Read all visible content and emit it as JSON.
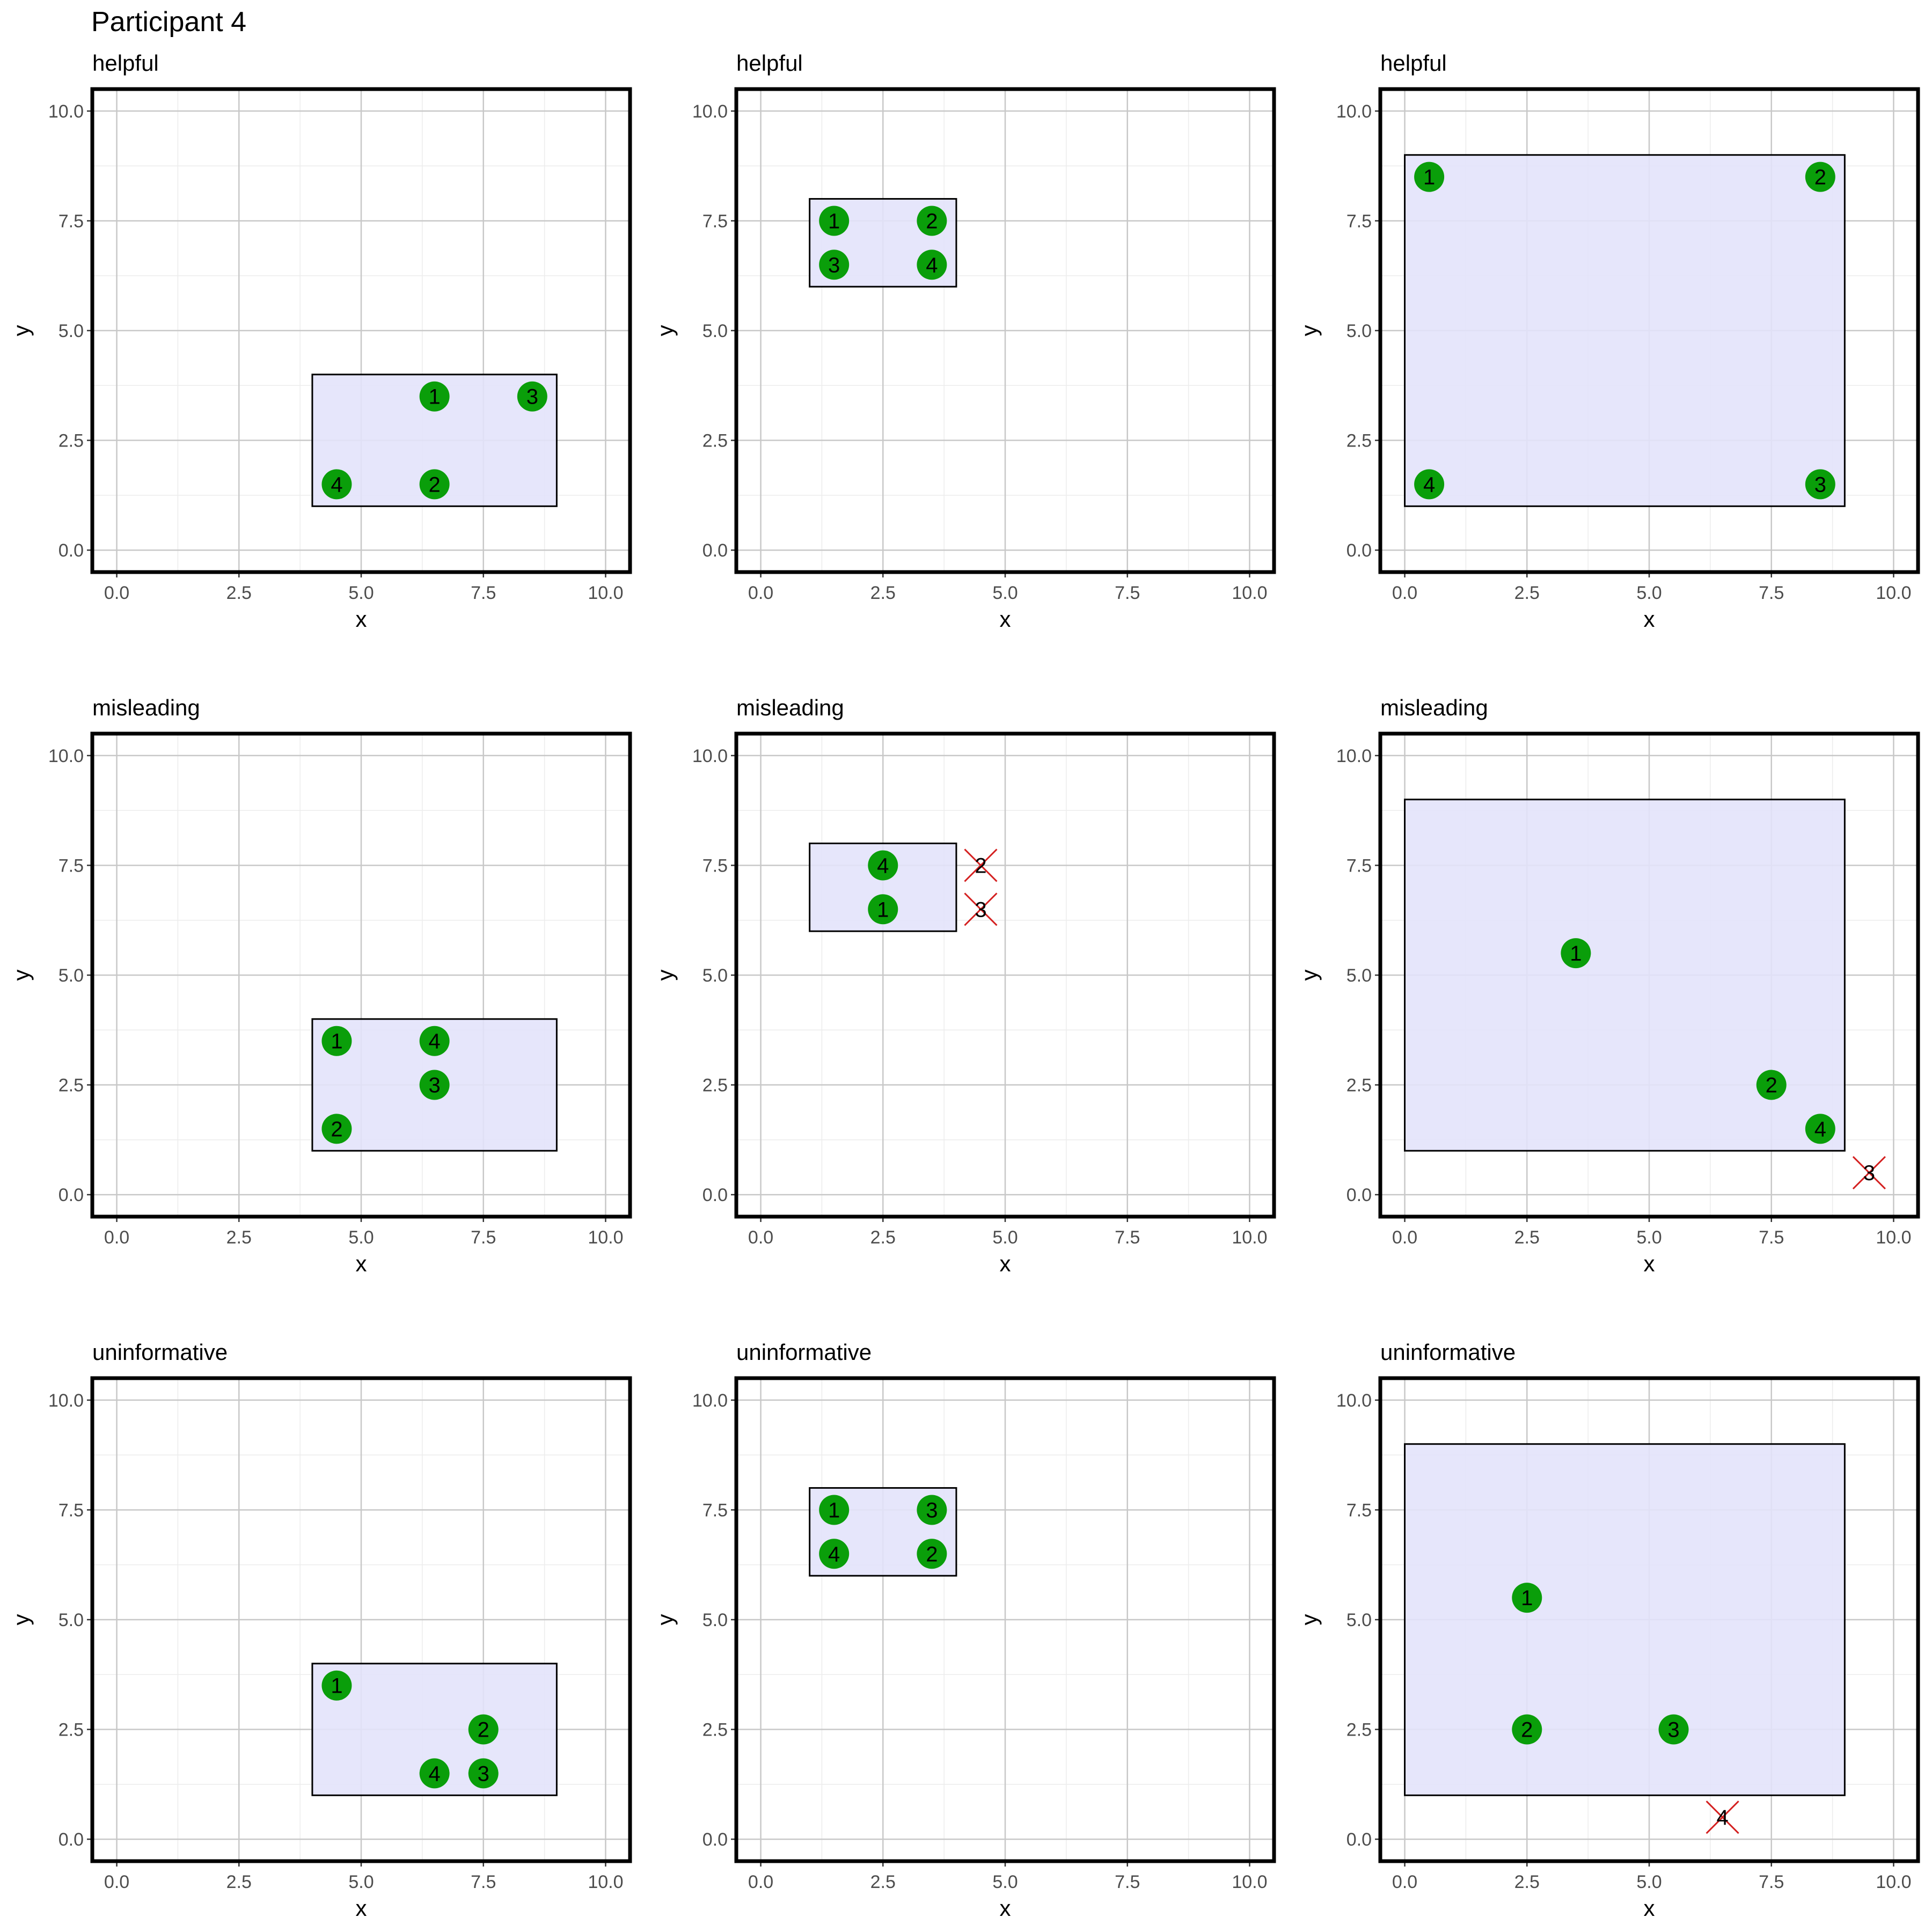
{
  "figure": {
    "title": "Participant 4"
  },
  "colors": {
    "point_fill": "#0a9e0a",
    "point_text": "#000000",
    "rect_fill": "#e3e3fb",
    "rect_stroke": "#000000",
    "cross": "#d42020",
    "grid_major": "#c8c8c8",
    "grid_minor": "#ececec",
    "frame": "#000000",
    "tick_label": "#4d4d4d"
  },
  "chart_data": [
    {
      "type": "scatter",
      "title": "helpful",
      "xlabel": "x",
      "ylabel": "y",
      "xlim": [
        -0.5,
        10.5
      ],
      "ylim": [
        -0.5,
        10.5
      ],
      "xticks": [
        "0.0",
        "2.5",
        "5.0",
        "7.5",
        "10.0"
      ],
      "yticks": [
        "0.0",
        "2.5",
        "5.0",
        "7.5",
        "10.0"
      ],
      "rect": {
        "x0": 4,
        "x1": 9,
        "y0": 1,
        "y1": 4
      },
      "points": [
        {
          "label": "1",
          "x": 6.5,
          "y": 3.5,
          "status": "inside"
        },
        {
          "label": "2",
          "x": 6.5,
          "y": 1.5,
          "status": "inside"
        },
        {
          "label": "3",
          "x": 8.5,
          "y": 3.5,
          "status": "inside"
        },
        {
          "label": "4",
          "x": 4.5,
          "y": 1.5,
          "status": "inside"
        }
      ]
    },
    {
      "type": "scatter",
      "title": "helpful",
      "xlabel": "x",
      "ylabel": "y",
      "xlim": [
        -0.5,
        10.5
      ],
      "ylim": [
        -0.5,
        10.5
      ],
      "xticks": [
        "0.0",
        "2.5",
        "5.0",
        "7.5",
        "10.0"
      ],
      "yticks": [
        "0.0",
        "2.5",
        "5.0",
        "7.5",
        "10.0"
      ],
      "rect": {
        "x0": 1,
        "x1": 4,
        "y0": 6,
        "y1": 8
      },
      "points": [
        {
          "label": "1",
          "x": 1.5,
          "y": 7.5,
          "status": "inside"
        },
        {
          "label": "2",
          "x": 3.5,
          "y": 7.5,
          "status": "inside"
        },
        {
          "label": "3",
          "x": 1.5,
          "y": 6.5,
          "status": "inside"
        },
        {
          "label": "4",
          "x": 3.5,
          "y": 6.5,
          "status": "inside"
        }
      ]
    },
    {
      "type": "scatter",
      "title": "helpful",
      "xlabel": "x",
      "ylabel": "y",
      "xlim": [
        -0.5,
        10.5
      ],
      "ylim": [
        -0.5,
        10.5
      ],
      "xticks": [
        "0.0",
        "2.5",
        "5.0",
        "7.5",
        "10.0"
      ],
      "yticks": [
        "0.0",
        "2.5",
        "5.0",
        "7.5",
        "10.0"
      ],
      "rect": {
        "x0": 0,
        "x1": 9,
        "y0": 1,
        "y1": 9
      },
      "points": [
        {
          "label": "1",
          "x": 0.5,
          "y": 8.5,
          "status": "inside"
        },
        {
          "label": "2",
          "x": 8.5,
          "y": 8.5,
          "status": "inside"
        },
        {
          "label": "3",
          "x": 8.5,
          "y": 1.5,
          "status": "inside"
        },
        {
          "label": "4",
          "x": 0.5,
          "y": 1.5,
          "status": "inside"
        }
      ]
    },
    {
      "type": "scatter",
      "title": "misleading",
      "xlabel": "x",
      "ylabel": "y",
      "xlim": [
        -0.5,
        10.5
      ],
      "ylim": [
        -0.5,
        10.5
      ],
      "xticks": [
        "0.0",
        "2.5",
        "5.0",
        "7.5",
        "10.0"
      ],
      "yticks": [
        "0.0",
        "2.5",
        "5.0",
        "7.5",
        "10.0"
      ],
      "rect": {
        "x0": 4,
        "x1": 9,
        "y0": 1,
        "y1": 4
      },
      "points": [
        {
          "label": "1",
          "x": 4.5,
          "y": 3.5,
          "status": "inside"
        },
        {
          "label": "2",
          "x": 4.5,
          "y": 1.5,
          "status": "inside"
        },
        {
          "label": "3",
          "x": 6.5,
          "y": 2.5,
          "status": "inside"
        },
        {
          "label": "4",
          "x": 6.5,
          "y": 3.5,
          "status": "inside"
        }
      ]
    },
    {
      "type": "scatter",
      "title": "misleading",
      "xlabel": "x",
      "ylabel": "y",
      "xlim": [
        -0.5,
        10.5
      ],
      "ylim": [
        -0.5,
        10.5
      ],
      "xticks": [
        "0.0",
        "2.5",
        "5.0",
        "7.5",
        "10.0"
      ],
      "yticks": [
        "0.0",
        "2.5",
        "5.0",
        "7.5",
        "10.0"
      ],
      "rect": {
        "x0": 1,
        "x1": 4,
        "y0": 6,
        "y1": 8
      },
      "points": [
        {
          "label": "1",
          "x": 2.5,
          "y": 6.5,
          "status": "inside"
        },
        {
          "label": "2",
          "x": 4.5,
          "y": 7.5,
          "status": "outside"
        },
        {
          "label": "3",
          "x": 4.5,
          "y": 6.5,
          "status": "outside"
        },
        {
          "label": "4",
          "x": 2.5,
          "y": 7.5,
          "status": "inside"
        }
      ]
    },
    {
      "type": "scatter",
      "title": "misleading",
      "xlabel": "x",
      "ylabel": "y",
      "xlim": [
        -0.5,
        10.5
      ],
      "ylim": [
        -0.5,
        10.5
      ],
      "xticks": [
        "0.0",
        "2.5",
        "5.0",
        "7.5",
        "10.0"
      ],
      "yticks": [
        "0.0",
        "2.5",
        "5.0",
        "7.5",
        "10.0"
      ],
      "rect": {
        "x0": 0,
        "x1": 9,
        "y0": 1,
        "y1": 9
      },
      "points": [
        {
          "label": "1",
          "x": 3.5,
          "y": 5.5,
          "status": "inside"
        },
        {
          "label": "2",
          "x": 7.5,
          "y": 2.5,
          "status": "inside"
        },
        {
          "label": "3",
          "x": 9.5,
          "y": 0.5,
          "status": "outside"
        },
        {
          "label": "4",
          "x": 8.5,
          "y": 1.5,
          "status": "inside"
        }
      ]
    },
    {
      "type": "scatter",
      "title": "uninformative",
      "xlabel": "x",
      "ylabel": "y",
      "xlim": [
        -0.5,
        10.5
      ],
      "ylim": [
        -0.5,
        10.5
      ],
      "xticks": [
        "0.0",
        "2.5",
        "5.0",
        "7.5",
        "10.0"
      ],
      "yticks": [
        "0.0",
        "2.5",
        "5.0",
        "7.5",
        "10.0"
      ],
      "rect": {
        "x0": 4,
        "x1": 9,
        "y0": 1,
        "y1": 4
      },
      "points": [
        {
          "label": "1",
          "x": 4.5,
          "y": 3.5,
          "status": "inside"
        },
        {
          "label": "2",
          "x": 7.5,
          "y": 2.5,
          "status": "inside"
        },
        {
          "label": "3",
          "x": 7.5,
          "y": 1.5,
          "status": "inside"
        },
        {
          "label": "4",
          "x": 6.5,
          "y": 1.5,
          "status": "inside"
        }
      ]
    },
    {
      "type": "scatter",
      "title": "uninformative",
      "xlabel": "x",
      "ylabel": "y",
      "xlim": [
        -0.5,
        10.5
      ],
      "ylim": [
        -0.5,
        10.5
      ],
      "xticks": [
        "0.0",
        "2.5",
        "5.0",
        "7.5",
        "10.0"
      ],
      "yticks": [
        "0.0",
        "2.5",
        "5.0",
        "7.5",
        "10.0"
      ],
      "rect": {
        "x0": 1,
        "x1": 4,
        "y0": 6,
        "y1": 8
      },
      "points": [
        {
          "label": "1",
          "x": 1.5,
          "y": 7.5,
          "status": "inside"
        },
        {
          "label": "2",
          "x": 3.5,
          "y": 6.5,
          "status": "inside"
        },
        {
          "label": "3",
          "x": 3.5,
          "y": 7.5,
          "status": "inside"
        },
        {
          "label": "4",
          "x": 1.5,
          "y": 6.5,
          "status": "inside"
        }
      ]
    },
    {
      "type": "scatter",
      "title": "uninformative",
      "xlabel": "x",
      "ylabel": "y",
      "xlim": [
        -0.5,
        10.5
      ],
      "ylim": [
        -0.5,
        10.5
      ],
      "xticks": [
        "0.0",
        "2.5",
        "5.0",
        "7.5",
        "10.0"
      ],
      "yticks": [
        "0.0",
        "2.5",
        "5.0",
        "7.5",
        "10.0"
      ],
      "rect": {
        "x0": 0,
        "x1": 9,
        "y0": 1,
        "y1": 9
      },
      "points": [
        {
          "label": "1",
          "x": 2.5,
          "y": 5.5,
          "status": "inside"
        },
        {
          "label": "2",
          "x": 2.5,
          "y": 2.5,
          "status": "inside"
        },
        {
          "label": "3",
          "x": 5.5,
          "y": 2.5,
          "status": "inside"
        },
        {
          "label": "4",
          "x": 6.5,
          "y": 0.5,
          "status": "outside"
        }
      ]
    }
  ]
}
